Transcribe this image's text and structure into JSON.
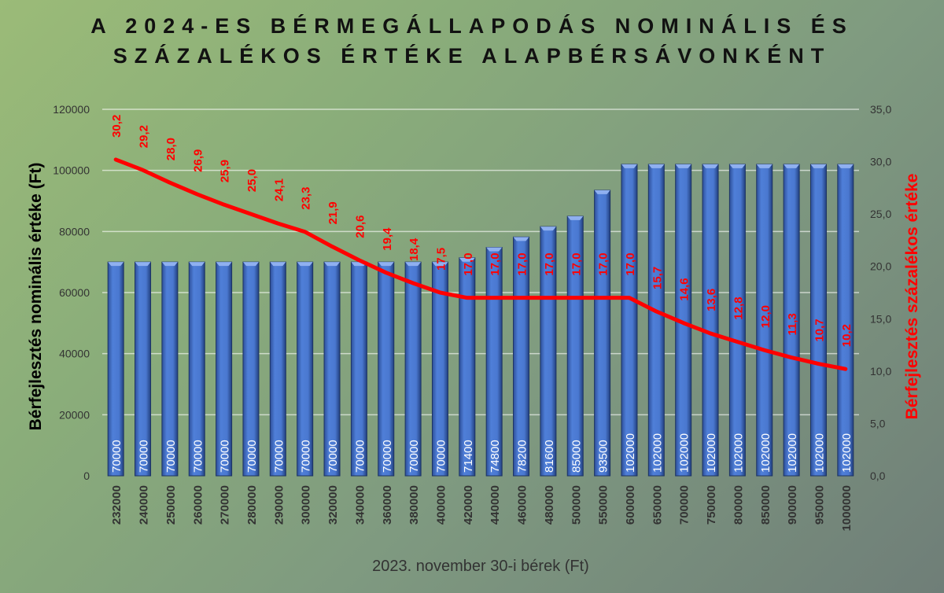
{
  "chart_data": {
    "type": "bar+line",
    "title_lines": [
      "A 2024-ES BÉRMEGÁLLAPODÁS NOMINÁLIS ÉS",
      "SZÁZALÉKOS ÉRTÉKE ALAPBÉRSÁVONKÉNT"
    ],
    "xlabel": "2023. november 30-i bérek (Ft)",
    "ylabel": "Bérfejlesztés nominális értéke (Ft)",
    "y2label": "Bérfejlesztés százalékos értéke",
    "ylim": [
      0,
      120000
    ],
    "y_ticks": [
      "0",
      "20000",
      "40000",
      "60000",
      "80000",
      "100000",
      "120000"
    ],
    "y2lim": [
      0,
      35
    ],
    "y2_ticks": [
      "0,0",
      "5,0",
      "10,0",
      "15,0",
      "20,0",
      "25,0",
      "30,0",
      "35,0"
    ],
    "grid": true,
    "categories": [
      "232000",
      "240000",
      "250000",
      "260000",
      "270000",
      "280000",
      "290000",
      "300000",
      "320000",
      "340000",
      "360000",
      "380000",
      "400000",
      "420000",
      "440000",
      "460000",
      "480000",
      "500000",
      "550000",
      "600000",
      "650000",
      "700000",
      "750000",
      "800000",
      "850000",
      "900000",
      "950000",
      "1000000"
    ],
    "series": [
      {
        "name": "Nominális",
        "type": "bar",
        "color": "#4a78d0",
        "values": [
          70000,
          70000,
          70000,
          70000,
          70000,
          70000,
          70000,
          70000,
          70000,
          70000,
          70000,
          70000,
          70000,
          71400,
          74800,
          78200,
          81600,
          85000,
          93500,
          102000,
          102000,
          102000,
          102000,
          102000,
          102000,
          102000,
          102000,
          102000
        ]
      },
      {
        "name": "Százalékos",
        "type": "line",
        "color": "#ff0000",
        "values": [
          30.2,
          29.2,
          28.0,
          26.9,
          25.9,
          25.0,
          24.1,
          23.3,
          21.9,
          20.6,
          19.4,
          18.4,
          17.5,
          17.0,
          17.0,
          17.0,
          17.0,
          17.0,
          17.0,
          17.0,
          15.7,
          14.6,
          13.6,
          12.8,
          12.0,
          11.3,
          10.7,
          10.2
        ]
      }
    ]
  }
}
